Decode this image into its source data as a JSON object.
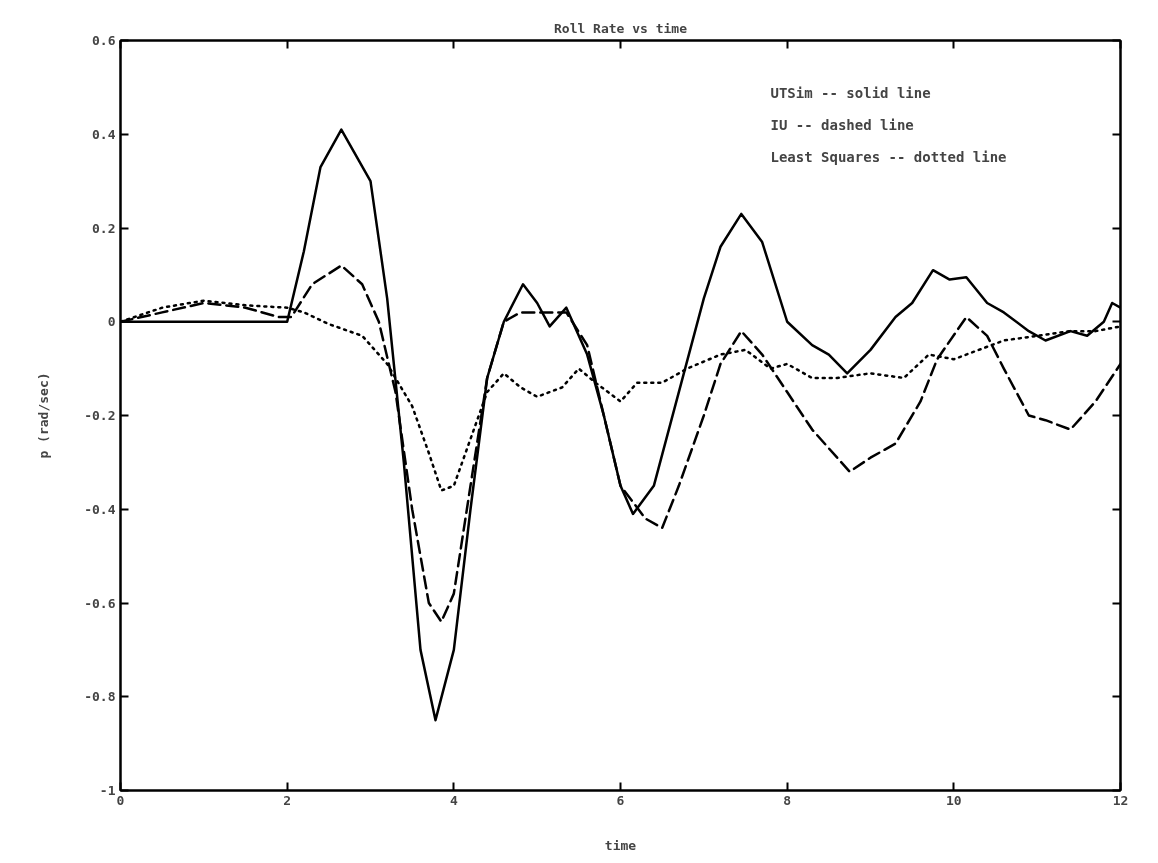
{
  "chart_data": {
    "type": "line",
    "title": "Roll Rate vs time",
    "xlabel": "time",
    "ylabel": "p (rad/sec)",
    "annotations": [
      "UTSim -- solid line",
      "IU -- dashed line",
      "Least Squares --  dotted line"
    ],
    "xlim": [
      0,
      12
    ],
    "ylim": [
      -1,
      0.6
    ],
    "xticks": [
      0,
      2,
      4,
      6,
      8,
      10,
      12
    ],
    "yticks": [
      {
        "value": -1,
        "label": "-1"
      },
      {
        "value": -0.8,
        "label": "-0.8"
      },
      {
        "value": -0.6,
        "label": "-0.6"
      },
      {
        "value": -0.4,
        "label": "-0.4"
      },
      {
        "value": -0.2,
        "label": "-0.2"
      },
      {
        "value": 0,
        "label": "0"
      },
      {
        "value": 0.2,
        "label": "0.2"
      },
      {
        "value": 0.4,
        "label": "0.4"
      },
      {
        "value": 0.6,
        "label": "0.6"
      }
    ],
    "grid": false,
    "series": [
      {
        "color": "#000000",
        "line_style": "solid",
        "x": [
          0,
          2.0,
          2.2,
          2.4,
          2.65,
          3.0,
          3.2,
          3.4,
          3.6,
          3.78,
          4.0,
          4.2,
          4.4,
          4.6,
          4.83,
          5.0,
          5.15,
          5.35,
          5.6,
          5.8,
          6.0,
          6.15,
          6.4,
          6.7,
          7.0,
          7.2,
          7.45,
          7.7,
          8.0,
          8.3,
          8.5,
          8.72,
          9.0,
          9.3,
          9.5,
          9.75,
          9.95,
          10.15,
          10.4,
          10.6,
          10.9,
          11.1,
          11.4,
          11.6,
          11.8,
          11.9,
          12
        ],
        "values": [
          0,
          0,
          0.15,
          0.33,
          0.41,
          0.3,
          0.05,
          -0.3,
          -0.7,
          -0.85,
          -0.7,
          -0.4,
          -0.12,
          0.0,
          0.08,
          0.04,
          -0.01,
          0.03,
          -0.07,
          -0.2,
          -0.35,
          -0.41,
          -0.35,
          -0.15,
          0.05,
          0.16,
          0.23,
          0.17,
          0.0,
          -0.05,
          -0.07,
          -0.11,
          -0.06,
          0.01,
          0.04,
          0.11,
          0.09,
          0.095,
          0.04,
          0.02,
          -0.02,
          -0.04,
          -0.02,
          -0.03,
          0.0,
          0.04,
          0.03
        ]
      },
      {
        "color": "#000000",
        "line_style": "dashed",
        "x": [
          0,
          0.5,
          1.0,
          1.5,
          1.9,
          2.05,
          2.3,
          2.65,
          2.9,
          3.1,
          3.3,
          3.5,
          3.7,
          3.85,
          4.0,
          4.2,
          4.4,
          4.6,
          4.8,
          5.0,
          5.35,
          5.6,
          5.8,
          6.0,
          6.3,
          6.5,
          6.7,
          7.0,
          7.2,
          7.45,
          7.7,
          8.0,
          8.3,
          8.5,
          8.75,
          9.0,
          9.3,
          9.6,
          9.8,
          10.15,
          10.4,
          10.6,
          10.9,
          11.1,
          11.4,
          11.7,
          12
        ],
        "values": [
          0,
          0.02,
          0.04,
          0.03,
          0.01,
          0.01,
          0.08,
          0.12,
          0.08,
          0.0,
          -0.15,
          -0.4,
          -0.6,
          -0.64,
          -0.58,
          -0.35,
          -0.12,
          0.0,
          0.02,
          0.02,
          0.02,
          -0.05,
          -0.2,
          -0.35,
          -0.42,
          -0.44,
          -0.35,
          -0.2,
          -0.09,
          -0.02,
          -0.07,
          -0.15,
          -0.23,
          -0.27,
          -0.32,
          -0.29,
          -0.26,
          -0.17,
          -0.08,
          0.01,
          -0.03,
          -0.1,
          -0.2,
          -0.21,
          -0.23,
          -0.17,
          -0.09
        ]
      },
      {
        "color": "#000000",
        "line_style": "dotted",
        "x": [
          0,
          0.5,
          1.0,
          1.5,
          2.0,
          2.2,
          2.5,
          2.9,
          3.2,
          3.5,
          3.7,
          3.85,
          4.0,
          4.2,
          4.4,
          4.6,
          4.8,
          5.0,
          5.3,
          5.5,
          5.7,
          6.0,
          6.2,
          6.5,
          6.8,
          7.2,
          7.5,
          7.8,
          8.0,
          8.3,
          8.6,
          9.0,
          9.4,
          9.7,
          10.0,
          10.3,
          10.6,
          11.0,
          11.4,
          11.7,
          12
        ],
        "values": [
          0,
          0.03,
          0.045,
          0.035,
          0.03,
          0.02,
          -0.005,
          -0.03,
          -0.09,
          -0.18,
          -0.28,
          -0.36,
          -0.35,
          -0.25,
          -0.15,
          -0.11,
          -0.14,
          -0.16,
          -0.14,
          -0.1,
          -0.13,
          -0.17,
          -0.13,
          -0.13,
          -0.1,
          -0.07,
          -0.06,
          -0.1,
          -0.09,
          -0.12,
          -0.12,
          -0.11,
          -0.12,
          -0.07,
          -0.08,
          -0.06,
          -0.04,
          -0.03,
          -0.02,
          -0.02,
          -0.01
        ]
      }
    ]
  }
}
